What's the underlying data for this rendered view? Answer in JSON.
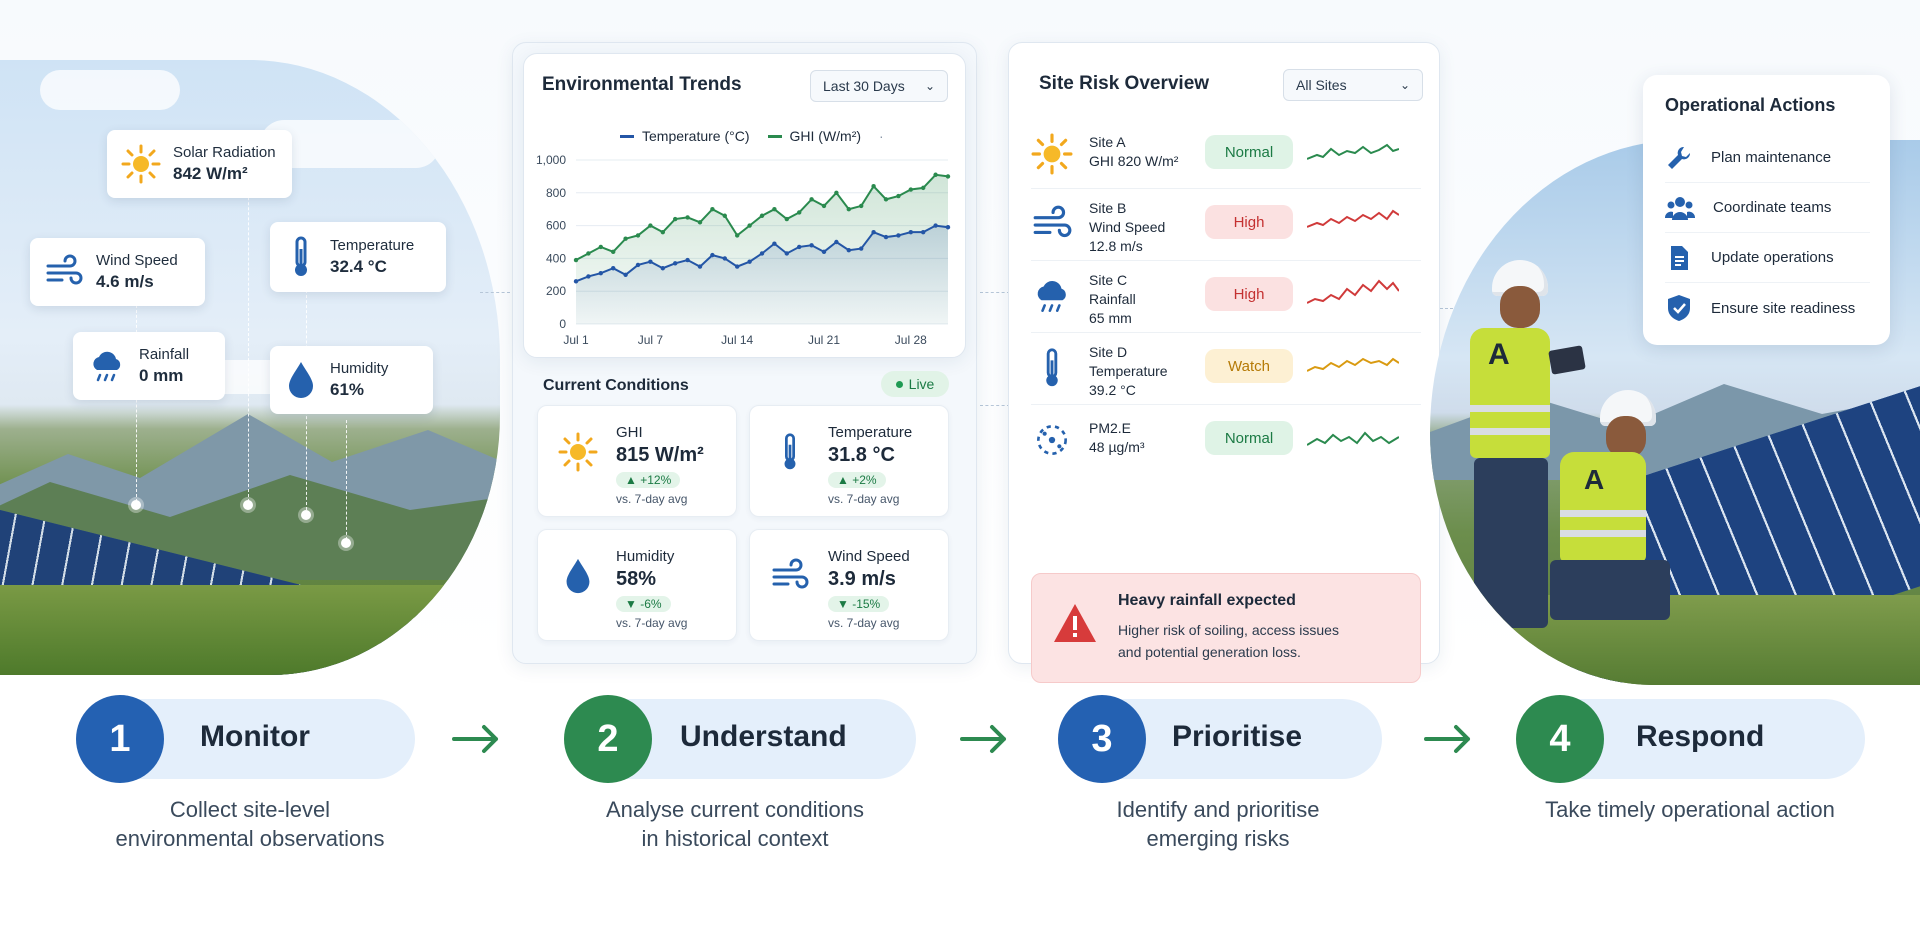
{
  "left_tags": [
    {
      "label": "Solar Radiation",
      "value": "842 W/m²",
      "icon": "sun-icon"
    },
    {
      "label": "Wind Speed",
      "value": "4.6 m/s",
      "icon": "wind-icon"
    },
    {
      "label": "Temperature",
      "value": "32.4 °C",
      "icon": "thermometer-icon"
    },
    {
      "label": "Rainfall",
      "value": "0 mm",
      "icon": "rain-cloud-icon"
    },
    {
      "label": "Humidity",
      "value": "61%",
      "icon": "droplet-icon"
    }
  ],
  "trends": {
    "title": "Environmental Trends",
    "range_select": "Last 30 Days",
    "legend": [
      {
        "label": "Temperature (°C)",
        "color": "#2456a6"
      },
      {
        "label": "GHI (W/m²)",
        "color": "#2a8a4e"
      }
    ],
    "legend_more": "·",
    "y_ticks": [
      "1,000",
      "800",
      "600",
      "400",
      "200",
      "0"
    ],
    "x_ticks": [
      "Jul 1",
      "Jul 7",
      "Jul 14",
      "Jul 21",
      "Jul 28"
    ]
  },
  "chart_data": {
    "type": "area",
    "title": "Environmental Trends",
    "x": [
      1,
      2,
      3,
      4,
      5,
      6,
      7,
      8,
      9,
      10,
      11,
      12,
      13,
      14,
      15,
      16,
      17,
      18,
      19,
      20,
      21,
      22,
      23,
      24,
      25,
      26,
      27,
      28,
      29,
      30,
      31
    ],
    "x_tick_labels": [
      "Jul 1",
      "Jul 7",
      "Jul 14",
      "Jul 21",
      "Jul 28"
    ],
    "ylim": [
      0,
      1000
    ],
    "y_ticks": [
      0,
      200,
      400,
      600,
      800,
      1000
    ],
    "grid": true,
    "legend": "top",
    "series": [
      {
        "name": "GHI (W/m²)",
        "color": "#2a8a4e",
        "values": [
          390,
          430,
          470,
          440,
          520,
          540,
          600,
          560,
          640,
          650,
          620,
          700,
          660,
          540,
          600,
          660,
          700,
          640,
          680,
          760,
          720,
          800,
          700,
          720,
          840,
          760,
          780,
          820,
          830,
          910,
          900
        ]
      },
      {
        "name": "Temperature (°C)",
        "color": "#2456a6",
        "values": [
          260,
          290,
          310,
          340,
          300,
          360,
          380,
          340,
          370,
          390,
          350,
          420,
          400,
          350,
          380,
          430,
          490,
          430,
          470,
          480,
          440,
          500,
          450,
          460,
          560,
          530,
          540,
          560,
          560,
          600,
          590
        ]
      }
    ]
  },
  "conditions": {
    "title": "Current Conditions",
    "live": "Live",
    "items": [
      {
        "label": "GHI",
        "value": "815 W/m²",
        "delta": "▲ +12%",
        "sub": "vs. 7-day avg",
        "icon": "sun-icon"
      },
      {
        "label": "Temperature",
        "value": "31.8 °C",
        "delta": "▲ +2%",
        "sub": "vs. 7-day avg",
        "icon": "thermometer-icon"
      },
      {
        "label": "Humidity",
        "value": "58%",
        "delta": "▼ -6%",
        "sub": "vs. 7-day avg",
        "icon": "droplet-icon"
      },
      {
        "label": "Wind Speed",
        "value": "3.9 m/s",
        "delta": "▼ -15%",
        "sub": "vs. 7-day avg",
        "icon": "wind-icon"
      }
    ]
  },
  "risk": {
    "title": "Site Risk Overview",
    "select": "All Sites",
    "rows": [
      {
        "line1": "Site A",
        "line2": "GHI 820 W/m²",
        "line3": "",
        "status": "Normal",
        "level": "normal",
        "icon": "sun-icon"
      },
      {
        "line1": "Site B",
        "line2": "Wind Speed",
        "line3": "12.8 m/s",
        "status": "High",
        "level": "high",
        "icon": "wind-icon"
      },
      {
        "line1": "Site C",
        "line2": "Rainfall",
        "line3": "65 mm",
        "status": "High",
        "level": "high",
        "icon": "rain-cloud-icon"
      },
      {
        "line1": "Site D",
        "line2": "Temperature",
        "line3": "39.2 °C",
        "status": "Watch",
        "level": "watch",
        "icon": "thermometer-icon"
      },
      {
        "line1": "PM2.E",
        "line2": "48 µg/m³",
        "line3": "",
        "status": "Normal",
        "level": "normal",
        "icon": "particles-icon"
      }
    ],
    "alert": {
      "title": "Heavy rainfall expected",
      "line1": "Higher risk of soiling, access issues",
      "line2": "and potential generation loss."
    }
  },
  "operations": {
    "title": "Operational Actions",
    "items": [
      {
        "label": "Plan maintenance",
        "icon": "wrench-icon"
      },
      {
        "label": "Coordinate teams",
        "icon": "team-icon"
      },
      {
        "label": "Update operations",
        "icon": "document-icon"
      },
      {
        "label": "Ensure site readiness",
        "icon": "shield-check-icon"
      }
    ]
  },
  "workers": {
    "vest_letter": "A"
  },
  "steps": [
    {
      "number": "1",
      "title": "Monitor",
      "desc1": "Collect site-level",
      "desc2": "environmental observations",
      "color": "#2461b2"
    },
    {
      "number": "2",
      "title": "Understand",
      "desc1": "Analyse current conditions",
      "desc2": "in historical context",
      "color": "#2d8a50"
    },
    {
      "number": "3",
      "title": "Prioritise",
      "desc1": "Identify and prioritise",
      "desc2": "emerging risks",
      "color": "#2461b2"
    },
    {
      "number": "4",
      "title": "Respond",
      "desc1": "Take timely operational action",
      "desc2": "",
      "color": "#2d8a50"
    }
  ]
}
